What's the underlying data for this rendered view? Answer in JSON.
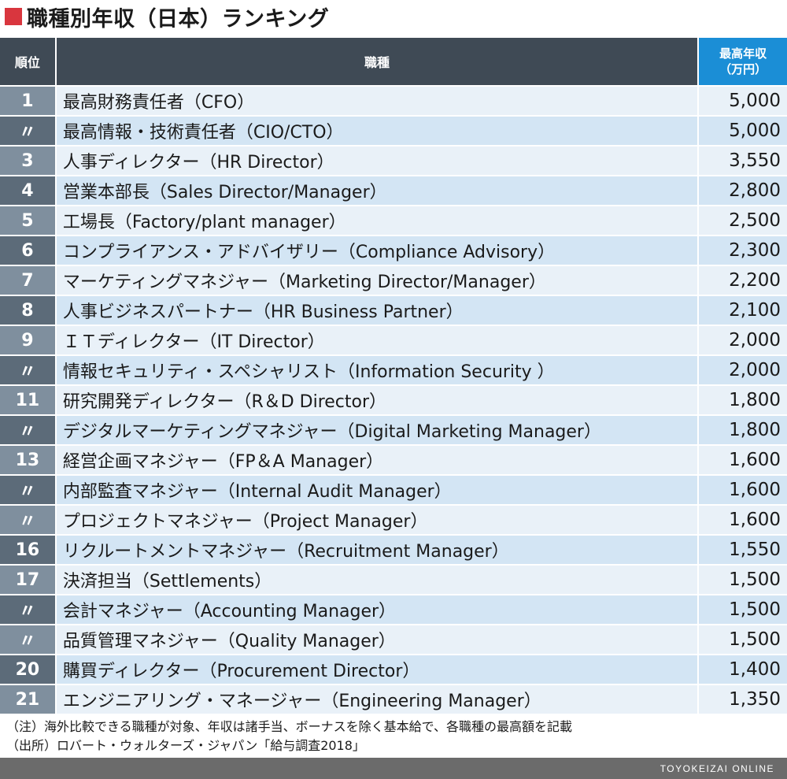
{
  "title": "職種別年収（日本）ランキング",
  "header": {
    "rank": "順位",
    "job": "職種",
    "salary_line1": "最高年収",
    "salary_line2": "（万円）"
  },
  "rows": [
    {
      "rank": "1",
      "job": "最高財務責任者（CFO）",
      "salary": "5,000"
    },
    {
      "rank": "〃",
      "job": "最高情報・技術責任者（CIO/CTO）",
      "salary": "5,000"
    },
    {
      "rank": "3",
      "job": "人事ディレクター（HR Director）",
      "salary": "3,550"
    },
    {
      "rank": "4",
      "job": "営業本部長（Sales Director/Manager）",
      "salary": "2,800"
    },
    {
      "rank": "5",
      "job": "工場長（Factory/plant manager）",
      "salary": "2,500"
    },
    {
      "rank": "6",
      "job": "コンプライアンス・アドバイザリー（Compliance Advisory）",
      "salary": "2,300"
    },
    {
      "rank": "7",
      "job": "マーケティングマネジャー（Marketing Director/Manager）",
      "salary": "2,200"
    },
    {
      "rank": "8",
      "job": "人事ビジネスパートナー（HR Business Partner）",
      "salary": "2,100"
    },
    {
      "rank": "9",
      "job": "ＩＴディレクター（IT Director）",
      "salary": "2,000"
    },
    {
      "rank": "〃",
      "job": "情報セキュリティ・スペシャリスト（Information Security ）",
      "salary": "2,000"
    },
    {
      "rank": "11",
      "job": "研究開発ディレクター（R＆D Director）",
      "salary": "1,800"
    },
    {
      "rank": "〃",
      "job": "デジタルマーケティングマネジャー（Digital Marketing Manager）",
      "salary": "1,800"
    },
    {
      "rank": "13",
      "job": "経営企画マネジャー（FP＆A Manager）",
      "salary": "1,600"
    },
    {
      "rank": "〃",
      "job": "内部監査マネジャー（Internal Audit Manager）",
      "salary": "1,600"
    },
    {
      "rank": "〃",
      "job": "プロジェクトマネジャー（Project Manager）",
      "salary": "1,600"
    },
    {
      "rank": "16",
      "job": "リクルートメントマネジャー（Recruitment Manager）",
      "salary": "1,550"
    },
    {
      "rank": "17",
      "job": "決済担当（Settlements）",
      "salary": "1,500"
    },
    {
      "rank": "〃",
      "job": "会計マネジャー（Accounting Manager）",
      "salary": "1,500"
    },
    {
      "rank": "〃",
      "job": "品質管理マネジャー（Quality Manager）",
      "salary": "1,500"
    },
    {
      "rank": "20",
      "job": "購買ディレクター（Procurement Director）",
      "salary": "1,400"
    },
    {
      "rank": "21",
      "job": "エンジニアリング・マネージャー（Engineering Manager）",
      "salary": "1,350"
    }
  ],
  "notes": {
    "note": "（注）海外比較できる職種が対象、年収は諸手当、ボーナスを除く基本給で、各職種の最高額を記載",
    "source": "（出所）ロバート・ウォルターズ・ジャパン「給与調査2018」"
  },
  "footer": "TOYOKEIZAI ONLINE",
  "colors": {
    "title_mark": "#d9363e",
    "header_dark": "#3f4a55",
    "header_accent": "#1b8ed6",
    "rank_light": "#7f8f9e",
    "rank_dark": "#5c6b79",
    "row_light": "#e9f1f8",
    "row_dark": "#d3e5f4",
    "footer_bg": "#6b6b6b"
  }
}
